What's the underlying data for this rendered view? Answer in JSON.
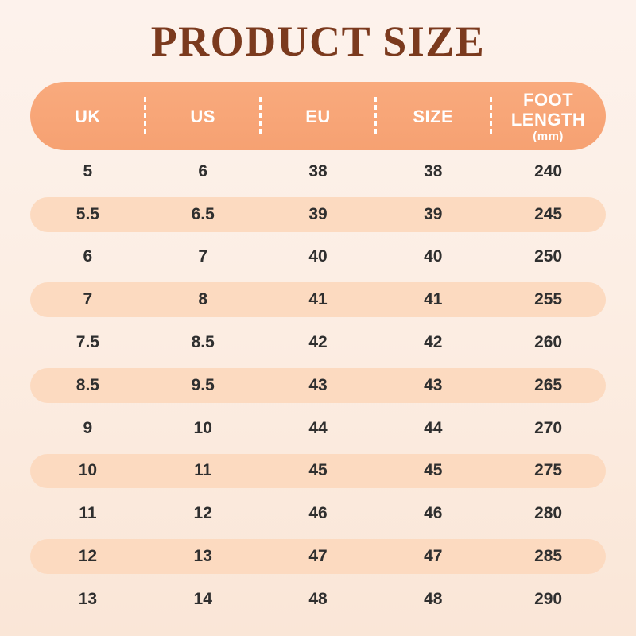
{
  "title": "PRODUCT SIZE",
  "colors": {
    "title_text": "#7B3A1E",
    "header_bg": "#F7A478",
    "header_text": "#FFFFFF",
    "row_alt_bg": "#FCDAC0",
    "cell_text": "#2F2F2F",
    "background_top": "#FDF2EC",
    "background_bottom": "#FAE6D7"
  },
  "table": {
    "columns": [
      {
        "label": "UK"
      },
      {
        "label": "US"
      },
      {
        "label": "EU"
      },
      {
        "label": "SIZE"
      },
      {
        "label": "FOOT LENGTH",
        "sublabel": "(mm)"
      }
    ],
    "rows": [
      [
        "5",
        "6",
        "38",
        "38",
        "240"
      ],
      [
        "5.5",
        "6.5",
        "39",
        "39",
        "245"
      ],
      [
        "6",
        "7",
        "40",
        "40",
        "250"
      ],
      [
        "7",
        "8",
        "41",
        "41",
        "255"
      ],
      [
        "7.5",
        "8.5",
        "42",
        "42",
        "260"
      ],
      [
        "8.5",
        "9.5",
        "43",
        "43",
        "265"
      ],
      [
        "9",
        "10",
        "44",
        "44",
        "270"
      ],
      [
        "10",
        "11",
        "45",
        "45",
        "275"
      ],
      [
        "11",
        "12",
        "46",
        "46",
        "280"
      ],
      [
        "12",
        "13",
        "47",
        "47",
        "285"
      ],
      [
        "13",
        "14",
        "48",
        "48",
        "290"
      ]
    ]
  },
  "chart_data": {
    "type": "table",
    "title": "PRODUCT SIZE",
    "columns": [
      "UK",
      "US",
      "EU",
      "SIZE",
      "FOOT LENGTH (mm)"
    ],
    "rows": [
      [
        "5",
        "6",
        "38",
        "38",
        "240"
      ],
      [
        "5.5",
        "6.5",
        "39",
        "39",
        "245"
      ],
      [
        "6",
        "7",
        "40",
        "40",
        "250"
      ],
      [
        "7",
        "8",
        "41",
        "41",
        "255"
      ],
      [
        "7.5",
        "8.5",
        "42",
        "42",
        "260"
      ],
      [
        "8.5",
        "9.5",
        "43",
        "43",
        "265"
      ],
      [
        "9",
        "10",
        "44",
        "44",
        "270"
      ],
      [
        "10",
        "11",
        "45",
        "45",
        "275"
      ],
      [
        "11",
        "12",
        "46",
        "46",
        "280"
      ],
      [
        "12",
        "13",
        "47",
        "47",
        "285"
      ],
      [
        "13",
        "14",
        "48",
        "48",
        "290"
      ]
    ]
  }
}
